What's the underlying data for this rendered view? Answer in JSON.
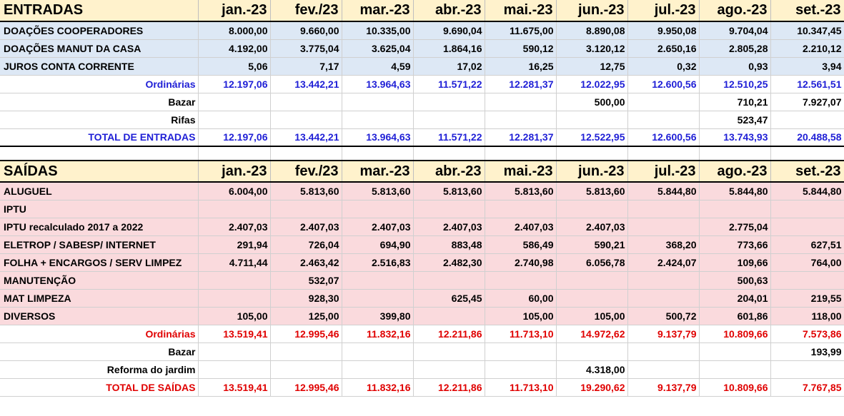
{
  "months": [
    "jan.-23",
    "fev./23",
    "mar.-23",
    "abr.-23",
    "mai.-23",
    "jun.-23",
    "jul.-23",
    "ago.-23",
    "set.-23"
  ],
  "entradas": {
    "title": "ENTRADAS",
    "rows": [
      {
        "label": "DOAÇÕES COOPERADORES",
        "values": [
          "8.000,00",
          "9.660,00",
          "10.335,00",
          "9.690,04",
          "11.675,00",
          "8.890,08",
          "9.950,08",
          "9.704,04",
          "10.347,45"
        ]
      },
      {
        "label": "DOAÇÕES MANUT DA CASA",
        "values": [
          "4.192,00",
          "3.775,04",
          "3.625,04",
          "1.864,16",
          "590,12",
          "3.120,12",
          "2.650,16",
          "2.805,28",
          "2.210,12"
        ]
      },
      {
        "label": "JUROS CONTA CORRENTE",
        "values": [
          "5,06",
          "7,17",
          "4,59",
          "17,02",
          "16,25",
          "12,75",
          "0,32",
          "0,93",
          "3,94"
        ]
      }
    ],
    "ordinarias": {
      "label": "Ordinárias",
      "values": [
        "12.197,06",
        "13.442,21",
        "13.964,63",
        "11.571,22",
        "12.281,37",
        "12.022,95",
        "12.600,56",
        "12.510,25",
        "12.561,51"
      ]
    },
    "bazar": {
      "label": "Bazar",
      "values": [
        "",
        "",
        "",
        "",
        "",
        "500,00",
        "",
        "710,21",
        "7.927,07"
      ]
    },
    "rifas": {
      "label": "Rifas",
      "values": [
        "",
        "",
        "",
        "",
        "",
        "",
        "",
        "523,47",
        ""
      ]
    },
    "total": {
      "label": "TOTAL DE ENTRADAS",
      "values": [
        "12.197,06",
        "13.442,21",
        "13.964,63",
        "11.571,22",
        "12.281,37",
        "12.522,95",
        "12.600,56",
        "13.743,93",
        "20.488,58"
      ]
    }
  },
  "saidas": {
    "title": "SAÍDAS",
    "rows": [
      {
        "label": "ALUGUEL",
        "values": [
          "6.004,00",
          "5.813,60",
          "5.813,60",
          "5.813,60",
          "5.813,60",
          "5.813,60",
          "5.844,80",
          "5.844,80",
          "5.844,80"
        ]
      },
      {
        "label": "IPTU",
        "values": [
          "",
          "",
          "",
          "",
          "",
          "",
          "",
          "",
          ""
        ]
      },
      {
        "label": "IPTU recalculado 2017 a 2022",
        "values": [
          "2.407,03",
          "2.407,03",
          "2.407,03",
          "2.407,03",
          "2.407,03",
          "2.407,03",
          "",
          "2.775,04",
          ""
        ]
      },
      {
        "label": "ELETROP / SABESP/ INTERNET",
        "values": [
          "291,94",
          "726,04",
          "694,90",
          "883,48",
          "586,49",
          "590,21",
          "368,20",
          "773,66",
          "627,51"
        ]
      },
      {
        "label": "FOLHA + ENCARGOS / SERV LIMPEZ",
        "values": [
          "4.711,44",
          "2.463,42",
          "2.516,83",
          "2.482,30",
          "2.740,98",
          "6.056,78",
          "2.424,07",
          "109,66",
          "764,00"
        ]
      },
      {
        "label": "MANUTENÇÃO",
        "values": [
          "",
          "532,07",
          "",
          "",
          "",
          "",
          "",
          "500,63",
          ""
        ]
      },
      {
        "label": "MAT LIMPEZA",
        "values": [
          "",
          "928,30",
          "",
          "625,45",
          "60,00",
          "",
          "",
          "204,01",
          "219,55"
        ]
      },
      {
        "label": "DIVERSOS",
        "values": [
          "105,00",
          "125,00",
          "399,80",
          "",
          "105,00",
          "105,00",
          "500,72",
          "601,86",
          "118,00"
        ]
      }
    ],
    "ordinarias": {
      "label": "Ordinárias",
      "values": [
        "13.519,41",
        "12.995,46",
        "11.832,16",
        "12.211,86",
        "11.713,10",
        "14.972,62",
        "9.137,79",
        "10.809,66",
        "7.573,86"
      ]
    },
    "bazar": {
      "label": "Bazar",
      "values": [
        "",
        "",
        "",
        "",
        "",
        "",
        "",
        "",
        "193,99"
      ]
    },
    "reforma": {
      "label": "Reforma do jardim",
      "values": [
        "",
        "",
        "",
        "",
        "",
        "4.318,00",
        "",
        "",
        ""
      ]
    },
    "total": {
      "label": "TOTAL DE SAÍDAS",
      "values": [
        "13.519,41",
        "12.995,46",
        "11.832,16",
        "12.211,86",
        "11.713,10",
        "19.290,62",
        "9.137,79",
        "10.809,66",
        "7.767,85"
      ]
    }
  }
}
